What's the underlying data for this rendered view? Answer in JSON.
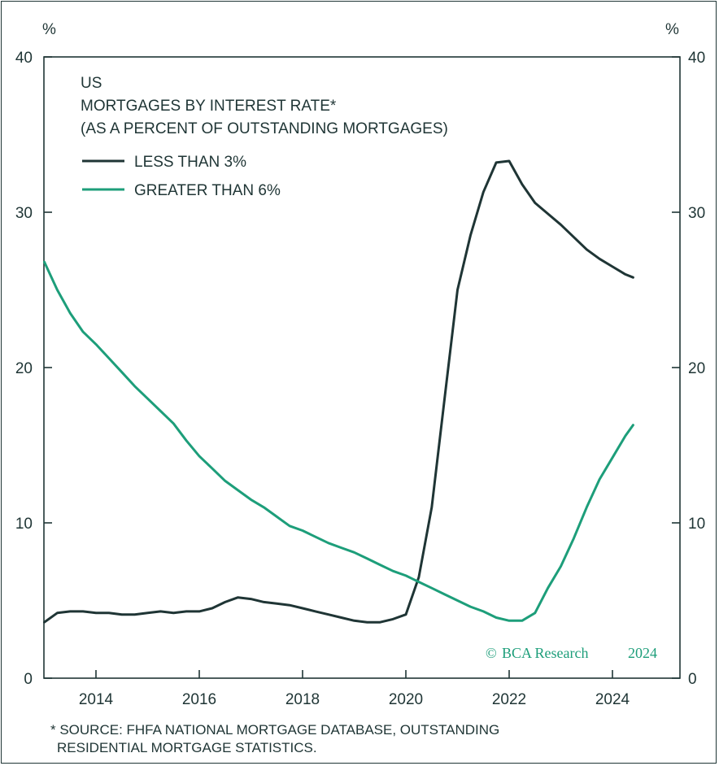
{
  "chart_data": {
    "type": "line",
    "title_lines": [
      "US",
      "MORTGAGES BY INTEREST RATE*",
      "(AS A PERCENT OF OUTSTANDING MORTGAGES)"
    ],
    "y_unit_left": "%",
    "y_unit_right": "%",
    "ylim": [
      0,
      40
    ],
    "yticks": [
      0,
      10,
      20,
      30,
      40
    ],
    "xlim": [
      2013.0,
      2025.0
    ],
    "xticks": [
      2014,
      2016,
      2018,
      2020,
      2022,
      2024
    ],
    "grid": false,
    "legend_position": "top-left",
    "series": [
      {
        "name": "LESS THAN 3%",
        "color": "#1f3535",
        "x": [
          2013.0,
          2013.25,
          2013.5,
          2013.75,
          2014.0,
          2014.25,
          2014.5,
          2014.75,
          2015.0,
          2015.25,
          2015.5,
          2015.75,
          2016.0,
          2016.25,
          2016.5,
          2016.75,
          2017.0,
          2017.25,
          2017.5,
          2017.75,
          2018.0,
          2018.25,
          2018.5,
          2018.75,
          2019.0,
          2019.25,
          2019.5,
          2019.75,
          2020.0,
          2020.25,
          2020.5,
          2020.75,
          2021.0,
          2021.25,
          2021.5,
          2021.75,
          2022.0,
          2022.25,
          2022.5,
          2022.75,
          2023.0,
          2023.25,
          2023.5,
          2023.75,
          2024.0,
          2024.25,
          2024.4
        ],
        "values": [
          3.6,
          4.2,
          4.3,
          4.3,
          4.2,
          4.2,
          4.1,
          4.1,
          4.2,
          4.3,
          4.2,
          4.3,
          4.3,
          4.5,
          4.9,
          5.2,
          5.1,
          4.9,
          4.8,
          4.7,
          4.5,
          4.3,
          4.1,
          3.9,
          3.7,
          3.6,
          3.6,
          3.8,
          4.1,
          6.5,
          11.0,
          18.0,
          25.0,
          28.5,
          31.3,
          33.2,
          33.3,
          31.8,
          30.6,
          29.9,
          29.2,
          28.4,
          27.6,
          27.0,
          26.5,
          26.0,
          25.8
        ]
      },
      {
        "name": "GREATER THAN 6%",
        "color": "#1d9e7a",
        "x": [
          2013.0,
          2013.25,
          2013.5,
          2013.75,
          2014.0,
          2014.25,
          2014.5,
          2014.75,
          2015.0,
          2015.25,
          2015.5,
          2015.75,
          2016.0,
          2016.25,
          2016.5,
          2016.75,
          2017.0,
          2017.25,
          2017.5,
          2017.75,
          2018.0,
          2018.25,
          2018.5,
          2018.75,
          2019.0,
          2019.25,
          2019.5,
          2019.75,
          2020.0,
          2020.25,
          2020.5,
          2020.75,
          2021.0,
          2021.25,
          2021.5,
          2021.75,
          2022.0,
          2022.25,
          2022.5,
          2022.75,
          2023.0,
          2023.25,
          2023.5,
          2023.75,
          2024.0,
          2024.25,
          2024.4
        ],
        "values": [
          26.8,
          25.0,
          23.5,
          22.3,
          21.5,
          20.6,
          19.7,
          18.8,
          18.0,
          17.2,
          16.4,
          15.3,
          14.3,
          13.5,
          12.7,
          12.1,
          11.5,
          11.0,
          10.4,
          9.8,
          9.5,
          9.1,
          8.7,
          8.4,
          8.1,
          7.7,
          7.3,
          6.9,
          6.6,
          6.2,
          5.8,
          5.4,
          5.0,
          4.6,
          4.3,
          3.9,
          3.7,
          3.7,
          4.2,
          5.8,
          7.2,
          9.0,
          11.0,
          12.8,
          14.2,
          15.6,
          16.3
        ]
      }
    ]
  },
  "footnote_lines": [
    "* SOURCE: FHFA NATIONAL MORTGAGE DATABASE, OUTSTANDING",
    "RESIDENTIAL MORTGAGE STATISTICS."
  ],
  "brand": {
    "symbol": "©",
    "name": "BCA Research",
    "year": "2024",
    "color": "#1d9e7a"
  }
}
